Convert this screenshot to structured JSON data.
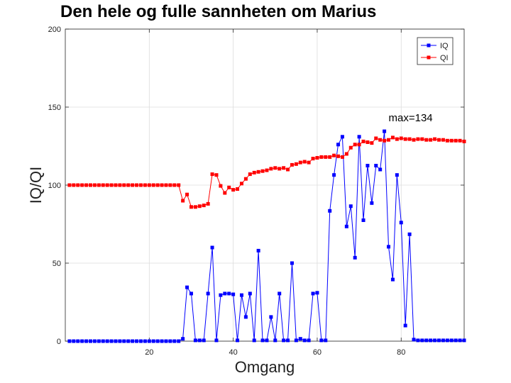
{
  "chart_data": {
    "type": "line",
    "title": "Den hele og fulle sannheten om Marius",
    "xlabel": "Omgang",
    "ylabel": "IQ/QI",
    "xlim": [
      0,
      95
    ],
    "ylim": [
      0,
      200
    ],
    "xticks": [
      20,
      40,
      60,
      80
    ],
    "yticks": [
      0,
      50,
      100,
      150,
      200
    ],
    "grid": true,
    "legend_position": "top-right",
    "annotation": {
      "text": "max=134",
      "x": 77,
      "y": 141
    },
    "series": [
      {
        "name": "IQ",
        "color": "#0000ff",
        "marker": "square",
        "x": [
          1,
          2,
          3,
          4,
          5,
          6,
          7,
          8,
          9,
          10,
          11,
          12,
          13,
          14,
          15,
          16,
          17,
          18,
          19,
          20,
          21,
          22,
          23,
          24,
          25,
          26,
          27,
          28,
          29,
          30,
          31,
          32,
          33,
          34,
          35,
          36,
          37,
          38,
          39,
          40,
          41,
          42,
          43,
          44,
          45,
          46,
          47,
          48,
          49,
          50,
          51,
          52,
          53,
          54,
          55,
          56,
          57,
          58,
          59,
          60,
          61,
          62,
          63,
          64,
          65,
          66,
          67,
          68,
          69,
          70,
          71,
          72,
          73,
          74,
          75,
          76,
          77,
          78,
          79,
          80,
          81,
          82,
          83,
          84,
          85,
          86,
          87,
          88,
          89,
          90,
          91,
          92,
          93,
          94,
          95
        ],
        "values": [
          0,
          0,
          0,
          0,
          0,
          0,
          0,
          0,
          0,
          0,
          0,
          0,
          0,
          0,
          0,
          0,
          0,
          0,
          0,
          0,
          0,
          0,
          0,
          0,
          0,
          0,
          0,
          1.5,
          34.5,
          30.5,
          0.5,
          0.5,
          0.5,
          30.5,
          60,
          0.5,
          29.5,
          30.5,
          30.5,
          30,
          0.5,
          29.5,
          15.5,
          30.5,
          0.5,
          58,
          0.5,
          0.5,
          15.5,
          0.5,
          30.5,
          0.5,
          0.5,
          50,
          0.5,
          1.5,
          0.5,
          0.5,
          30.5,
          31,
          0.5,
          0.5,
          83.5,
          106.5,
          126,
          131,
          73.5,
          86.5,
          53.5,
          131,
          77.5,
          112.5,
          88.5,
          112.5,
          110,
          134.5,
          60.5,
          39.5,
          106.5,
          76,
          10,
          68.5,
          1,
          0.5,
          0.5,
          0.5,
          0.5,
          0.5,
          0.5,
          0.5,
          0.5,
          0.5,
          0.5,
          0.5,
          0.5
        ]
      },
      {
        "name": "QI",
        "color": "#ff0000",
        "marker": "square",
        "x": [
          1,
          2,
          3,
          4,
          5,
          6,
          7,
          8,
          9,
          10,
          11,
          12,
          13,
          14,
          15,
          16,
          17,
          18,
          19,
          20,
          21,
          22,
          23,
          24,
          25,
          26,
          27,
          28,
          29,
          30,
          31,
          32,
          33,
          34,
          35,
          36,
          37,
          38,
          39,
          40,
          41,
          42,
          43,
          44,
          45,
          46,
          47,
          48,
          49,
          50,
          51,
          52,
          53,
          54,
          55,
          56,
          57,
          58,
          59,
          60,
          61,
          62,
          63,
          64,
          65,
          66,
          67,
          68,
          69,
          70,
          71,
          72,
          73,
          74,
          75,
          76,
          77,
          78,
          79,
          80,
          81,
          82,
          83,
          84,
          85,
          86,
          87,
          88,
          89,
          90,
          91,
          92,
          93,
          94,
          95
        ],
        "values": [
          100,
          100,
          100,
          100,
          100,
          100,
          100,
          100,
          100,
          100,
          100,
          100,
          100,
          100,
          100,
          100,
          100,
          100,
          100,
          100,
          100,
          100,
          100,
          100,
          100,
          100,
          100,
          90,
          94,
          86,
          86,
          86.5,
          87,
          88,
          107,
          106.5,
          99.5,
          95,
          98.5,
          97,
          97.5,
          101,
          104,
          107,
          108,
          108.5,
          109,
          109.5,
          110.5,
          111,
          110.5,
          111,
          110,
          113,
          113.5,
          114.5,
          115,
          114.5,
          117,
          117.5,
          118,
          118,
          118,
          119,
          118.5,
          118,
          120,
          124,
          126,
          126,
          128,
          127.5,
          127,
          130,
          129,
          128.5,
          129,
          130.5,
          129.5,
          130,
          129.5,
          129.5,
          129,
          129.5,
          129.5,
          129,
          129,
          129.5,
          129,
          129,
          128.5,
          128.5,
          128.5,
          128.5,
          128
        ]
      }
    ]
  }
}
